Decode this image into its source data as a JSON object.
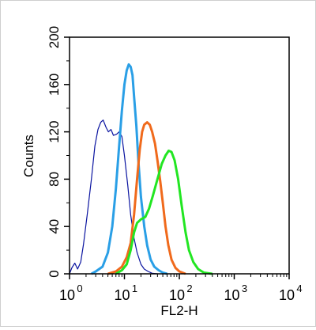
{
  "chart_data": {
    "type": "line",
    "xlabel": "FL2-H",
    "ylabel": "Counts",
    "xscale": "log",
    "xlim": [
      1,
      10000
    ],
    "ylim": [
      0,
      200
    ],
    "x_ticks": [
      {
        "value": 1,
        "base": "10",
        "exp": "0"
      },
      {
        "value": 10,
        "base": "10",
        "exp": "1"
      },
      {
        "value": 100,
        "base": "10",
        "exp": "2"
      },
      {
        "value": 1000,
        "base": "10",
        "exp": "3"
      },
      {
        "value": 10000,
        "base": "10",
        "exp": "4"
      }
    ],
    "y_ticks": [
      "0",
      "40",
      "80",
      "120",
      "160",
      "200"
    ],
    "grid": false,
    "legend": "none",
    "series": [
      {
        "color": "#0a14a0",
        "width": 1.2,
        "points": [
          [
            1,
            0
          ],
          [
            1.1,
            5
          ],
          [
            1.25,
            9
          ],
          [
            1.4,
            4
          ],
          [
            1.6,
            10
          ],
          [
            1.8,
            25
          ],
          [
            2.1,
            50
          ],
          [
            2.5,
            80
          ],
          [
            2.9,
            108
          ],
          [
            3.3,
            122
          ],
          [
            3.7,
            128
          ],
          [
            4.1,
            130
          ],
          [
            4.6,
            124
          ],
          [
            5.1,
            120
          ],
          [
            5.7,
            122
          ],
          [
            6.3,
            117
          ],
          [
            7.2,
            118
          ],
          [
            8.0,
            120
          ],
          [
            9.0,
            116
          ],
          [
            10.0,
            100
          ],
          [
            11.5,
            75
          ],
          [
            13,
            50
          ],
          [
            15,
            30
          ],
          [
            17,
            18
          ],
          [
            20,
            8
          ],
          [
            23,
            4
          ],
          [
            27,
            2
          ],
          [
            32,
            0.5
          ],
          [
            40,
            0
          ]
        ]
      },
      {
        "color": "#2a9fe6",
        "width": 3,
        "points": [
          [
            2.5,
            0
          ],
          [
            3,
            2
          ],
          [
            4,
            6
          ],
          [
            5,
            18
          ],
          [
            6,
            40
          ],
          [
            7,
            72
          ],
          [
            8,
            108
          ],
          [
            9,
            138
          ],
          [
            10,
            160
          ],
          [
            11,
            172
          ],
          [
            12,
            177
          ],
          [
            13,
            175
          ],
          [
            14,
            168
          ],
          [
            15,
            150
          ],
          [
            16.5,
            125
          ],
          [
            18,
            95
          ],
          [
            20,
            65
          ],
          [
            23,
            40
          ],
          [
            26,
            24
          ],
          [
            30,
            12
          ],
          [
            35,
            6
          ],
          [
            42,
            3
          ],
          [
            50,
            1
          ],
          [
            60,
            0
          ]
        ]
      },
      {
        "color": "#f06a1c",
        "width": 3,
        "points": [
          [
            5,
            0
          ],
          [
            7,
            2
          ],
          [
            9,
            6
          ],
          [
            11,
            14
          ],
          [
            13,
            26
          ],
          [
            15,
            50
          ],
          [
            17,
            80
          ],
          [
            19,
            105
          ],
          [
            21,
            120
          ],
          [
            23,
            126
          ],
          [
            26,
            128
          ],
          [
            29,
            126
          ],
          [
            32,
            120
          ],
          [
            36,
            110
          ],
          [
            40,
            96
          ],
          [
            45,
            78
          ],
          [
            50,
            60
          ],
          [
            56,
            40
          ],
          [
            63,
            24
          ],
          [
            72,
            12
          ],
          [
            85,
            5
          ],
          [
            100,
            2
          ],
          [
            130,
            0
          ]
        ]
      },
      {
        "color": "#22e622",
        "width": 3,
        "points": [
          [
            7,
            0
          ],
          [
            9,
            3
          ],
          [
            11,
            8
          ],
          [
            13,
            20
          ],
          [
            15,
            35
          ],
          [
            17,
            43
          ],
          [
            20,
            46
          ],
          [
            24,
            48
          ],
          [
            28,
            55
          ],
          [
            33,
            66
          ],
          [
            40,
            80
          ],
          [
            48,
            93
          ],
          [
            56,
            100
          ],
          [
            64,
            104
          ],
          [
            72,
            103
          ],
          [
            82,
            96
          ],
          [
            95,
            80
          ],
          [
            110,
            58
          ],
          [
            130,
            35
          ],
          [
            150,
            20
          ],
          [
            180,
            10
          ],
          [
            220,
            4
          ],
          [
            280,
            1
          ],
          [
            400,
            0
          ]
        ]
      }
    ]
  }
}
